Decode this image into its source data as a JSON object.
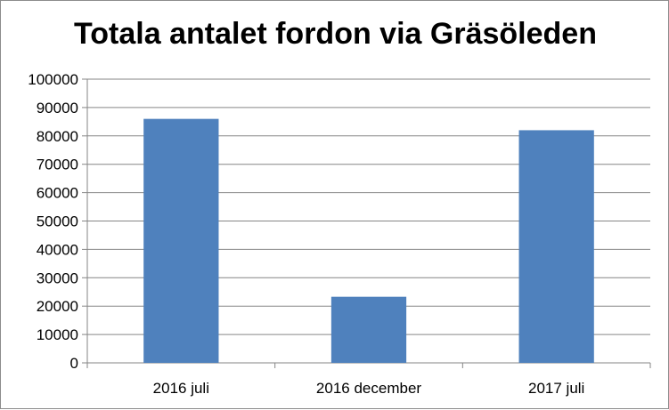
{
  "chart_data": {
    "type": "bar",
    "title": "Totala antalet fordon via Gräsöleden",
    "categories": [
      "2016 juli",
      "2016 december",
      "2017 juli"
    ],
    "values": [
      86000,
      23300,
      82000
    ],
    "ylim": [
      0,
      100000
    ],
    "yticks": [
      0,
      10000,
      20000,
      30000,
      40000,
      50000,
      60000,
      70000,
      80000,
      90000,
      100000
    ],
    "grid": true,
    "legend": "none",
    "bar_color": "#4f81bd",
    "grid_color": "#868686"
  }
}
